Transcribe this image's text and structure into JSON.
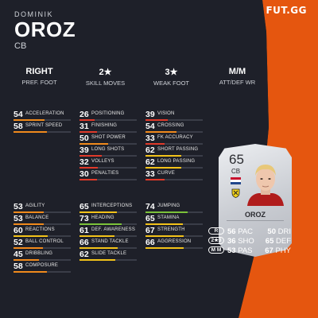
{
  "brand": "FUT.GG",
  "player": {
    "first_name": "DOMINIK",
    "last_name": "OROZ",
    "position": "CB"
  },
  "info": [
    {
      "value": "RIGHT",
      "label": "PREF. FOOT"
    },
    {
      "value": "2★",
      "label": "SKILL MOVES"
    },
    {
      "value": "3★",
      "label": "WEAK FOOT"
    },
    {
      "value": "M/M",
      "label": "ATT/DEF WR"
    }
  ],
  "colors": {
    "accent": "#e5560f",
    "background": "#1e2029",
    "bar_red": "#e03a2a",
    "bar_orange": "#f08a1c",
    "bar_yellow": "#f2c21a",
    "bar_green": "#7cc23a"
  },
  "groups": {
    "pace": [
      {
        "value": "54",
        "name": "ACCELERATION"
      },
      {
        "value": "58",
        "name": "SPRINT SPEED"
      }
    ],
    "shooting": [
      {
        "value": "26",
        "name": "POSITIONING"
      },
      {
        "value": "31",
        "name": "FINISHING"
      },
      {
        "value": "50",
        "name": "SHOT POWER"
      },
      {
        "value": "39",
        "name": "LONG SHOTS"
      },
      {
        "value": "32",
        "name": "VOLLEYS"
      },
      {
        "value": "30",
        "name": "PENALTIES"
      }
    ],
    "passing": [
      {
        "value": "39",
        "name": "VISION"
      },
      {
        "value": "54",
        "name": "CROSSING"
      },
      {
        "value": "33",
        "name": "FK ACCURACY"
      },
      {
        "value": "62",
        "name": "SHORT PASSING"
      },
      {
        "value": "62",
        "name": "LONG PASSING"
      },
      {
        "value": "33",
        "name": "CURVE"
      }
    ],
    "dribbling": [
      {
        "value": "53",
        "name": "AGILITY"
      },
      {
        "value": "53",
        "name": "BALANCE"
      },
      {
        "value": "60",
        "name": "REACTIONS"
      },
      {
        "value": "52",
        "name": "BALL CONTROL"
      },
      {
        "value": "45",
        "name": "DRIBBLING"
      },
      {
        "value": "58",
        "name": "COMPOSURE"
      }
    ],
    "defending": [
      {
        "value": "65",
        "name": "INTERCEPTIONS"
      },
      {
        "value": "73",
        "name": "HEADING"
      },
      {
        "value": "61",
        "name": "DEF. AWARENESS"
      },
      {
        "value": "66",
        "name": "STAND TACKLE"
      },
      {
        "value": "62",
        "name": "SLIDE TACKLE"
      }
    ],
    "physical": [
      {
        "value": "74",
        "name": "JUMPING"
      },
      {
        "value": "65",
        "name": "STAMINA"
      },
      {
        "value": "67",
        "name": "STRENGTH"
      },
      {
        "value": "66",
        "name": "AGGRESSION"
      }
    ]
  },
  "card": {
    "rating": "65",
    "position": "CB",
    "name": "OROZ",
    "flag_colors": [
      "#c8102e",
      "#ffffff",
      "#21468b"
    ],
    "club_icon": "club-crest-icon"
  },
  "card_badges": [
    "R",
    "2★3",
    "M M"
  ],
  "card_stats": [
    {
      "left_value": "56",
      "left_label": "PAC",
      "right_value": "50",
      "right_label": "DRI"
    },
    {
      "left_value": "36",
      "left_label": "SHO",
      "right_value": "65",
      "right_label": "DEF"
    },
    {
      "left_value": "53",
      "left_label": "PAS",
      "right_value": "67",
      "right_label": "PHY"
    }
  ]
}
